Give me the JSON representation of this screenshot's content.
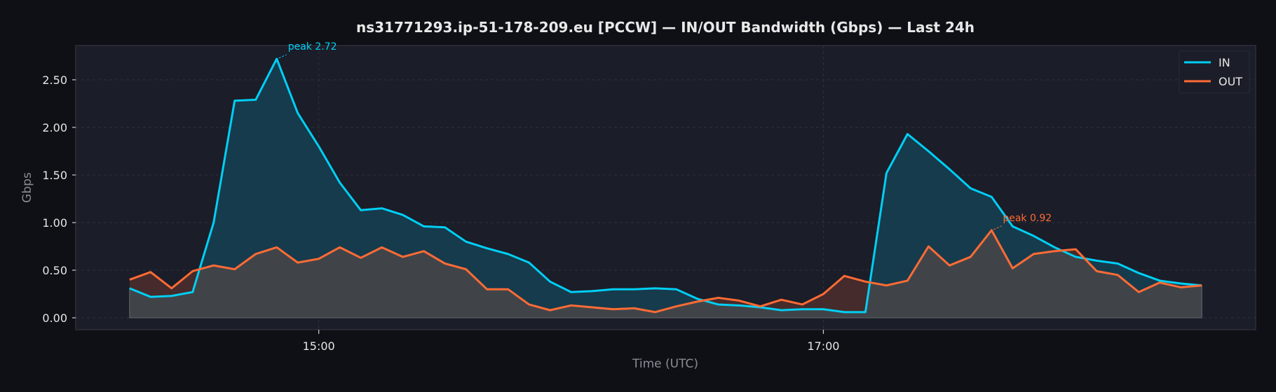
{
  "chart_data": {
    "type": "area",
    "title": "ns31771293.ip-51-178-209.eu [PCCW] — IN/OUT Bandwidth (Gbps) — Last 24h",
    "xlabel": "Time (UTC)",
    "ylabel": "Gbps",
    "x_start": "14:15",
    "x_step_minutes": 5,
    "xlim_minutes": [
      -12.8,
      267.8
    ],
    "ylim": [
      -0.125,
      2.86
    ],
    "grid": true,
    "legend_position": "top-right",
    "x_ticks": [
      {
        "label": "15:00",
        "minutes": 45
      },
      {
        "label": "17:00",
        "minutes": 165
      }
    ],
    "y_ticks": [
      "0.00",
      "0.50",
      "1.00",
      "1.50",
      "2.00",
      "2.50"
    ],
    "y_tick_values": [
      0,
      0.5,
      1,
      1.5,
      2,
      2.5
    ],
    "series": [
      {
        "name": "IN",
        "color": "#00cff5",
        "values": [
          0.31,
          0.22,
          0.23,
          0.27,
          1.0,
          2.28,
          2.29,
          2.72,
          2.15,
          1.8,
          1.42,
          1.13,
          1.15,
          1.08,
          0.96,
          0.95,
          0.8,
          0.73,
          0.67,
          0.58,
          0.38,
          0.27,
          0.28,
          0.3,
          0.3,
          0.31,
          0.3,
          0.2,
          0.14,
          0.13,
          0.11,
          0.08,
          0.09,
          0.09,
          0.06,
          0.06,
          1.52,
          1.93,
          1.75,
          1.56,
          1.36,
          1.27,
          0.96,
          0.86,
          0.74,
          0.64,
          0.6,
          0.57,
          0.47,
          0.39,
          0.36,
          0.34
        ]
      },
      {
        "name": "OUT",
        "color": "#ff6b35",
        "values": [
          0.4,
          0.48,
          0.31,
          0.49,
          0.55,
          0.51,
          0.67,
          0.74,
          0.58,
          0.62,
          0.74,
          0.63,
          0.74,
          0.64,
          0.7,
          0.57,
          0.51,
          0.3,
          0.3,
          0.14,
          0.08,
          0.13,
          0.11,
          0.09,
          0.1,
          0.06,
          0.12,
          0.17,
          0.21,
          0.18,
          0.12,
          0.19,
          0.14,
          0.25,
          0.44,
          0.38,
          0.34,
          0.39,
          0.75,
          0.55,
          0.64,
          0.92,
          0.52,
          0.67,
          0.7,
          0.72,
          0.49,
          0.45,
          0.27,
          0.37,
          0.32,
          0.34
        ]
      }
    ],
    "annotations": [
      {
        "text": "peak 2.72",
        "series": "IN",
        "index": 7
      },
      {
        "text": "peak 0.92",
        "series": "OUT",
        "index": 41
      }
    ]
  }
}
